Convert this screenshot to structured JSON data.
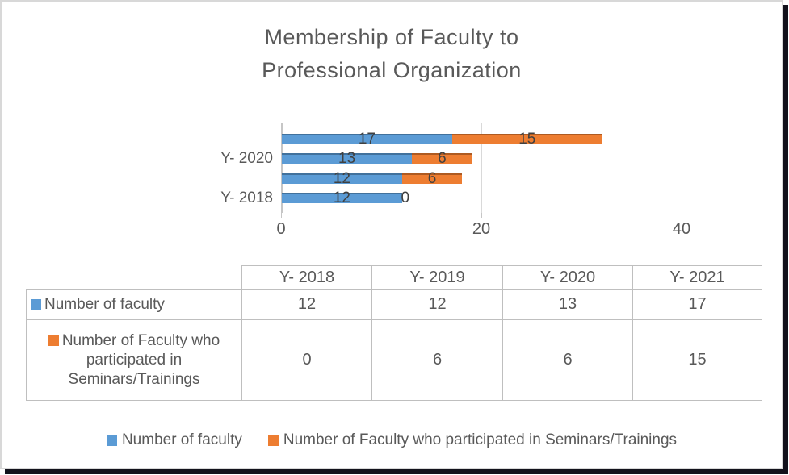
{
  "title": {
    "line1": "Membership of Faculty to",
    "line2": "Professional Organization"
  },
  "chart_data": {
    "type": "bar",
    "orientation": "horizontal-stacked",
    "title": "Membership of Faculty to Professional Organization",
    "categories": [
      "Y- 2018",
      "Y- 2019",
      "Y- 2020",
      "Y- 2021"
    ],
    "series": [
      {
        "name": "Number of faculty",
        "color": "#5B9BD5",
        "color_dark": "#41719C",
        "values": [
          12,
          12,
          13,
          17
        ]
      },
      {
        "name": "Number of Faculty who participated in Seminars/Trainings",
        "color": "#ED7D31",
        "color_dark": "#AE5A21",
        "values": [
          0,
          6,
          6,
          15
        ]
      }
    ],
    "xlabel": "",
    "ylabel": "",
    "xlim": [
      0,
      40
    ],
    "x_ticks": [
      0,
      20,
      40
    ],
    "x_tick_labels": [
      "0",
      "20",
      "40"
    ],
    "visible_category_labels": [
      "Y- 2020",
      "Y- 2018"
    ],
    "data_labels": true,
    "grid": true,
    "legend_position": "bottom"
  },
  "table": {
    "col_headers": [
      "Y- 2018",
      "Y- 2019",
      "Y- 2020",
      "Y- 2021"
    ],
    "rows": [
      {
        "label": "Number of faculty",
        "key_color": "#5B9BD5",
        "values": [
          "12",
          "12",
          "13",
          "17"
        ]
      },
      {
        "label": "Number of Faculty who participated in Seminars/Trainings",
        "key_color": "#ED7D31",
        "values": [
          "0",
          "6",
          "6",
          "15"
        ]
      }
    ]
  },
  "legend": {
    "items": [
      {
        "label": "Number of faculty",
        "color": "#5B9BD5"
      },
      {
        "label": "Number of Faculty who participated in Seminars/Trainings",
        "color": "#ED7D31"
      }
    ]
  },
  "colors": {
    "text": "#595959",
    "data_label": "#404040",
    "table_border": "#BFBFBF",
    "gridline": "#D9D9D9",
    "card_border": "#D8D8D8",
    "shadow": "#12121C"
  }
}
